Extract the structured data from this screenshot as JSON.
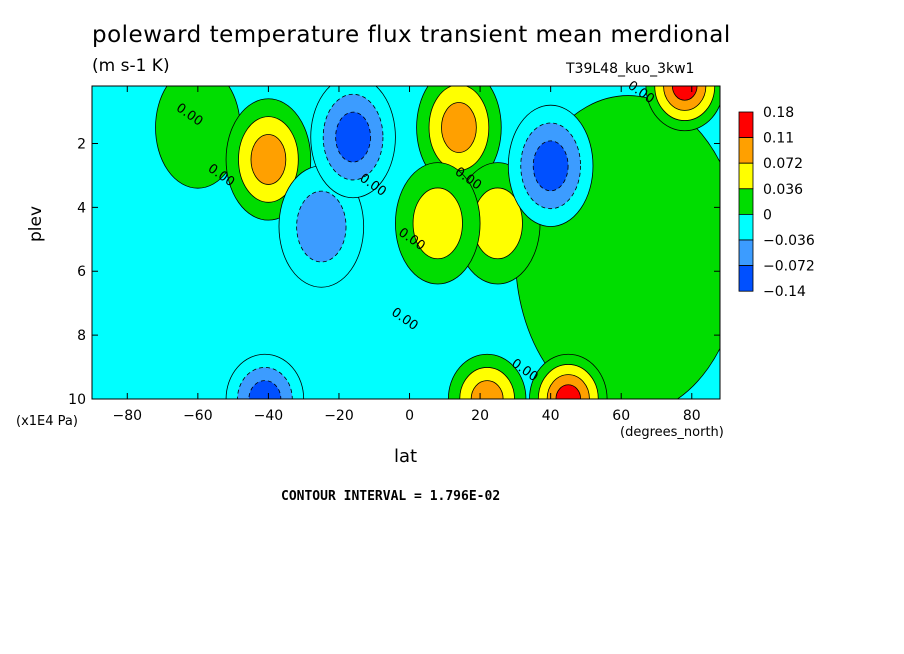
{
  "chart_data": {
    "type": "heatmap",
    "title": "poleward temperature flux transient mean merdional",
    "subtitle": "(m s-1 K)",
    "run_label": "T39L48_kuo_3kw1",
    "xlabel": "lat",
    "xunits": "(degrees_north)",
    "ylabel": "plev",
    "yunits": "(x1E4 Pa)",
    "xlim": [
      -90,
      88
    ],
    "ylim": [
      10,
      0.2
    ],
    "x_ticks": [
      -80,
      -60,
      -40,
      -20,
      0,
      20,
      40,
      60,
      80
    ],
    "x_tick_labels": [
      "−80",
      "−60",
      "−40",
      "−20",
      "0",
      "20",
      "40",
      "60",
      "80"
    ],
    "y_ticks": [
      2,
      4,
      6,
      8,
      10
    ],
    "y_tick_labels": [
      "2",
      "4",
      "6",
      "8",
      "10"
    ],
    "contour_interval_text": "CONTOUR INTERVAL = 1.796E-02",
    "contour_labels": [
      {
        "text": "0.00",
        "lat": -63,
        "plev": 1.2
      },
      {
        "text": "0.00",
        "lat": -54,
        "plev": 3.1
      },
      {
        "text": "0.00",
        "lat": -11,
        "plev": 3.4
      },
      {
        "text": "0.00",
        "lat": 16,
        "plev": 3.2
      },
      {
        "text": "0.00",
        "lat": 0,
        "plev": 5.1
      },
      {
        "text": "0.00",
        "lat": -2,
        "plev": 7.6
      },
      {
        "text": "0.00",
        "lat": 32,
        "plev": 9.2
      },
      {
        "text": "0.00",
        "lat": 65,
        "plev": 0.5
      }
    ],
    "levels": [
      -0.14,
      -0.072,
      -0.036,
      0,
      0.036,
      0.072,
      0.11,
      0.18
    ],
    "colorbar": {
      "labels": [
        "0.18",
        "0.11",
        "0.072",
        "0.036",
        "0",
        "−0.036",
        "−0.072",
        "−0.14"
      ],
      "colors": [
        "#ff0000",
        "#ffa000",
        "#ffff00",
        "#00dd00",
        "#00ffff",
        "#3c9cff",
        "#0050ff"
      ]
    },
    "features": [
      {
        "name": "background",
        "lat_range": [
          -90,
          88
        ],
        "plev_range": [
          0.2,
          10
        ],
        "level": -0.02
      },
      {
        "name": "NH green plateau",
        "lat": 62,
        "plev": 5.5,
        "level": 0.02
      },
      {
        "name": "SH upper green",
        "lat": -60,
        "plev": 1.5,
        "level": 0.02
      },
      {
        "name": "max 40S upper",
        "lat": -40,
        "plev": 2.5,
        "level": 0.08
      },
      {
        "name": "max 15N upper",
        "lat": 14,
        "plev": 1.5,
        "level": 0.09
      },
      {
        "name": "max 25N mid",
        "lat": 25,
        "plev": 4.5,
        "level": 0.05
      },
      {
        "name": "max 8N mid",
        "lat": 8,
        "plev": 4.5,
        "level": 0.04
      },
      {
        "name": "min 20S mid",
        "lat": -25,
        "plev": 4.6,
        "level": -0.06
      },
      {
        "name": "min 15S upper",
        "lat": -16,
        "plev": 1.8,
        "level": -0.09
      },
      {
        "name": "min 40N upper",
        "lat": 40,
        "plev": 2.7,
        "level": -0.08
      },
      {
        "name": "max 45N surface",
        "lat": 45,
        "plev": 10,
        "level": 0.15
      },
      {
        "name": "max 22N surface",
        "lat": 22,
        "plev": 10,
        "level": 0.1
      },
      {
        "name": "max 80N top",
        "lat": 78,
        "plev": 0.2,
        "level": 0.12
      },
      {
        "name": "min 40S surface",
        "lat": -41,
        "plev": 10,
        "level": -0.08
      }
    ]
  }
}
